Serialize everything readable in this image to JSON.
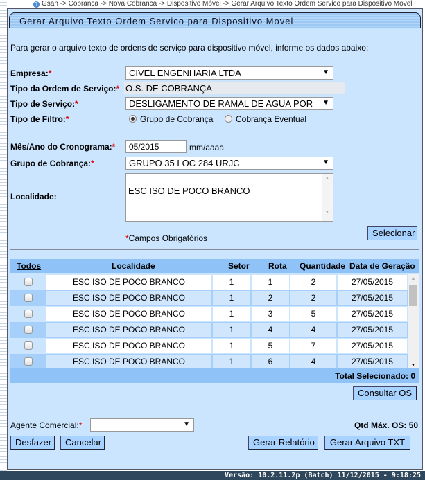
{
  "breadcrumb": "Gsan -> Cobranca -> Nova Cobranca -> Dispositivo Móvel -> Gerar Arquivo Texto Ordem Servico para Dispositivo Movel",
  "title": "Gerar Arquivo Texto Ordem Servico para Dispositivo Movel",
  "intro": "Para gerar o arquivo texto de ordens de serviço para dispositivo móvel, informe os dados abaixo:",
  "form": {
    "empresa_label": "Empresa:",
    "empresa_value": "CIVEL ENGENHARIA LTDA",
    "tipo_ordem_label": "Tipo da Ordem de Serviço:",
    "tipo_ordem_value": "O.S. DE COBRANÇA",
    "tipo_servico_label": "Tipo de Serviço:",
    "tipo_servico_value": "DESLIGAMENTO DE RAMAL DE AGUA POR",
    "tipo_filtro_label": "Tipo de Filtro:",
    "filtro_opt1": "Grupo de Cobrança",
    "filtro_opt2": "Cobrança Eventual",
    "filtro_selected": "Grupo de Cobrança",
    "mes_ano_label": "Mês/Ano do Cronograma:",
    "mes_ano_value": "05/2015",
    "mes_ano_hint": "mm/aaaa",
    "grupo_label": "Grupo de Cobrança:",
    "grupo_value": "GRUPO 35 LOC 284 URJC",
    "localidade_label": "Localidade:",
    "localidade_value": "ESC ISO DE POCO BRANCO",
    "required_note": "Campos Obrigatórios",
    "asterisk": "*",
    "selecionar": "Selecionar"
  },
  "table": {
    "headers": [
      "Todos",
      "Localidade",
      "Setor",
      "Rota",
      "Quantidade",
      "Data de Geração"
    ],
    "rows": [
      {
        "localidade": "ESC ISO DE POCO BRANCO",
        "setor": "1",
        "rota": "1",
        "quantidade": "2",
        "data": "27/05/2015"
      },
      {
        "localidade": "ESC ISO DE POCO BRANCO",
        "setor": "1",
        "rota": "2",
        "quantidade": "2",
        "data": "27/05/2015"
      },
      {
        "localidade": "ESC ISO DE POCO BRANCO",
        "setor": "1",
        "rota": "3",
        "quantidade": "5",
        "data": "27/05/2015"
      },
      {
        "localidade": "ESC ISO DE POCO BRANCO",
        "setor": "1",
        "rota": "4",
        "quantidade": "4",
        "data": "27/05/2015"
      },
      {
        "localidade": "ESC ISO DE POCO BRANCO",
        "setor": "1",
        "rota": "5",
        "quantidade": "7",
        "data": "27/05/2015"
      },
      {
        "localidade": "ESC ISO DE POCO BRANCO",
        "setor": "1",
        "rota": "6",
        "quantidade": "4",
        "data": "27/05/2015"
      }
    ],
    "total": "Total Selecionado: 0"
  },
  "consultar": "Consultar OS",
  "agente_label": "Agente Comercial:",
  "agente_value": "",
  "qtd_max": "Qtd Máx. OS: 50",
  "buttons": {
    "desfazer": "Desfazer",
    "cancelar": "Cancelar",
    "relatorio": "Gerar Relatório",
    "txt": "Gerar Arquivo TXT"
  },
  "version": "Versão: 10.2.11.2p (Batch) 11/12/2015 - 9:18:25",
  "colors": {
    "panel": "#cbe5ff",
    "header": "#8fc3f8",
    "button": "#a8d2ff",
    "footer": "#2f475c",
    "required": "#dd0000"
  }
}
